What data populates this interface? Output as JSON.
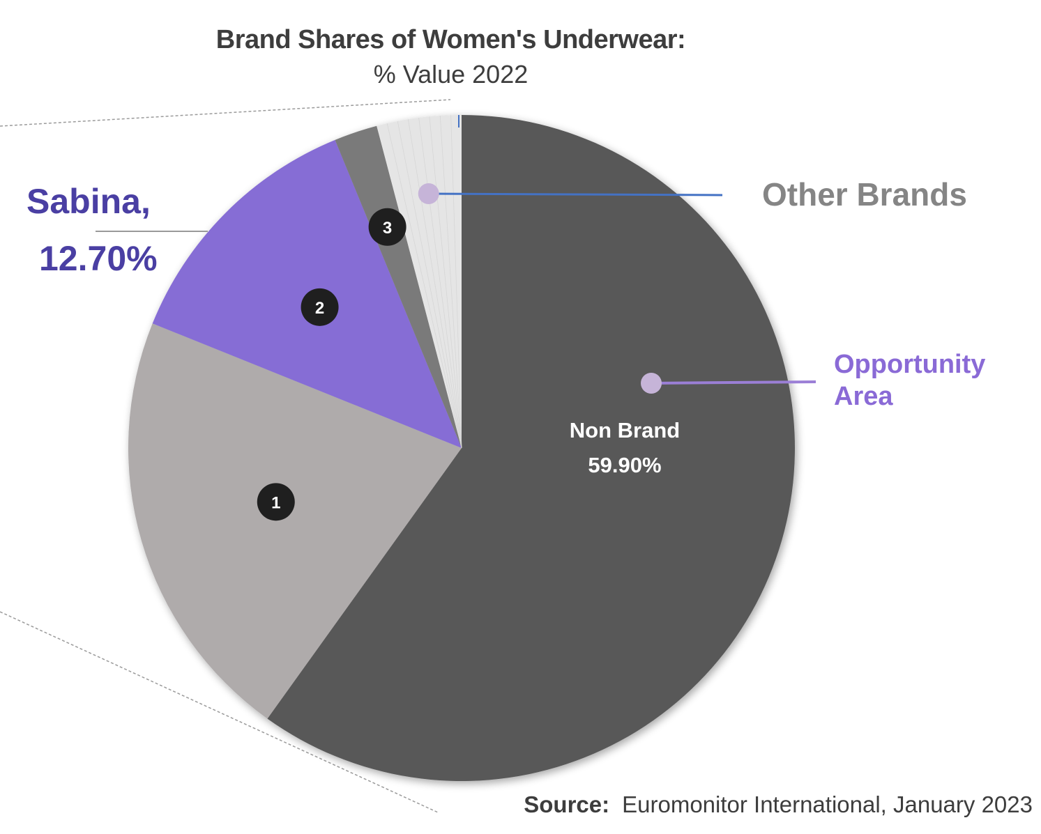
{
  "chart_data": {
    "type": "pie",
    "title": "Brand Shares of Women's Underwear:",
    "subtitle": "% Value 2022",
    "slices": [
      {
        "label": "Non Brand",
        "value": 59.9,
        "value_label": "59.90%",
        "color": "#595959"
      },
      {
        "label": "1",
        "value": 21.2,
        "color": "#afabab"
      },
      {
        "label": "Sabina",
        "value": 12.7,
        "value_label": "12.70%",
        "color": "#866dd5"
      },
      {
        "label": "3",
        "value": 2.1,
        "color": "#7a7a7a"
      },
      {
        "label": "Other Brands",
        "value": 4.1,
        "color": "#e5e5e5"
      }
    ],
    "badges": [
      {
        "label": "1",
        "slice": "1"
      },
      {
        "label": "2",
        "slice": "Sabina"
      },
      {
        "label": "3",
        "slice": "3"
      }
    ]
  },
  "annotations": {
    "sabina_name": "Sabina,",
    "sabina_value": "12.70%",
    "other_brands": "Other Brands",
    "opportunity_line1": "Opportunity",
    "opportunity_line2": "Area",
    "nonbrand_name": "Non Brand",
    "nonbrand_value": "59.90%"
  },
  "source": {
    "label": "Source:",
    "text": "Euromonitor International, January 2023"
  },
  "colors": {
    "sabina_text": "#4a3fa3",
    "opportunity_text": "#8a6ad6",
    "other_brands_text": "#858585",
    "marker_dot": "#c6b4d8",
    "leader_blue": "#4472c4",
    "leader_purple": "#9b7fd6",
    "badge": "#1f1f1f"
  }
}
